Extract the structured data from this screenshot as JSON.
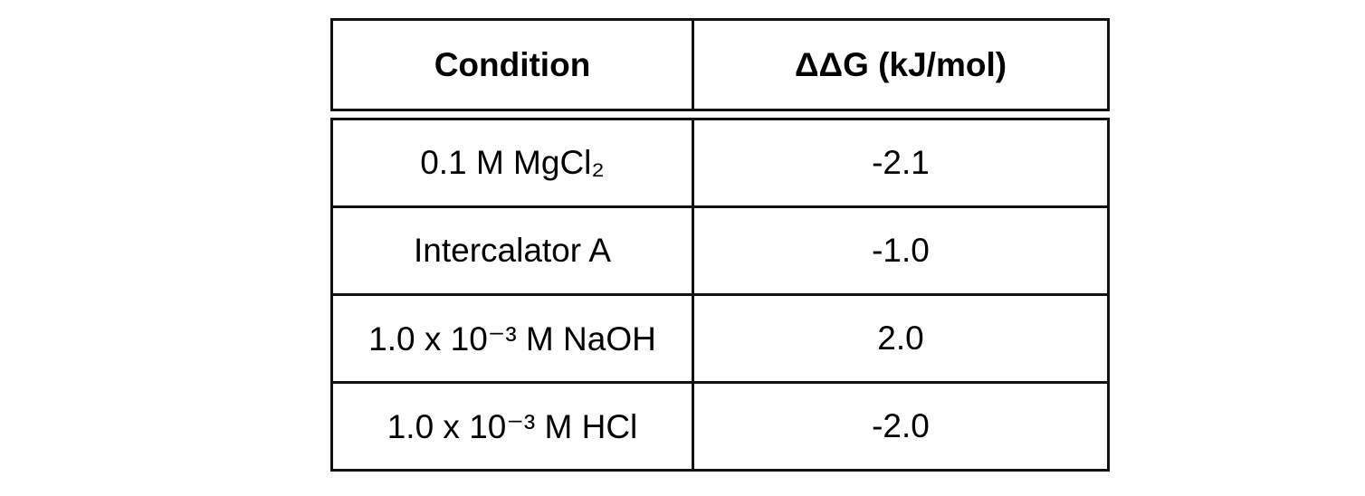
{
  "table": {
    "header": [
      "Condition",
      "ΔΔG (kJ/mol)"
    ],
    "rows": [
      [
        "0.1 M MgCl₂",
        "-2.1"
      ],
      [
        "Intercalator A",
        "-1.0"
      ],
      [
        "1.0 x 10⁻³ M NaOH",
        "2.0"
      ],
      [
        "1.0 x 10⁻³ M HCl",
        "-2.0"
      ]
    ]
  }
}
